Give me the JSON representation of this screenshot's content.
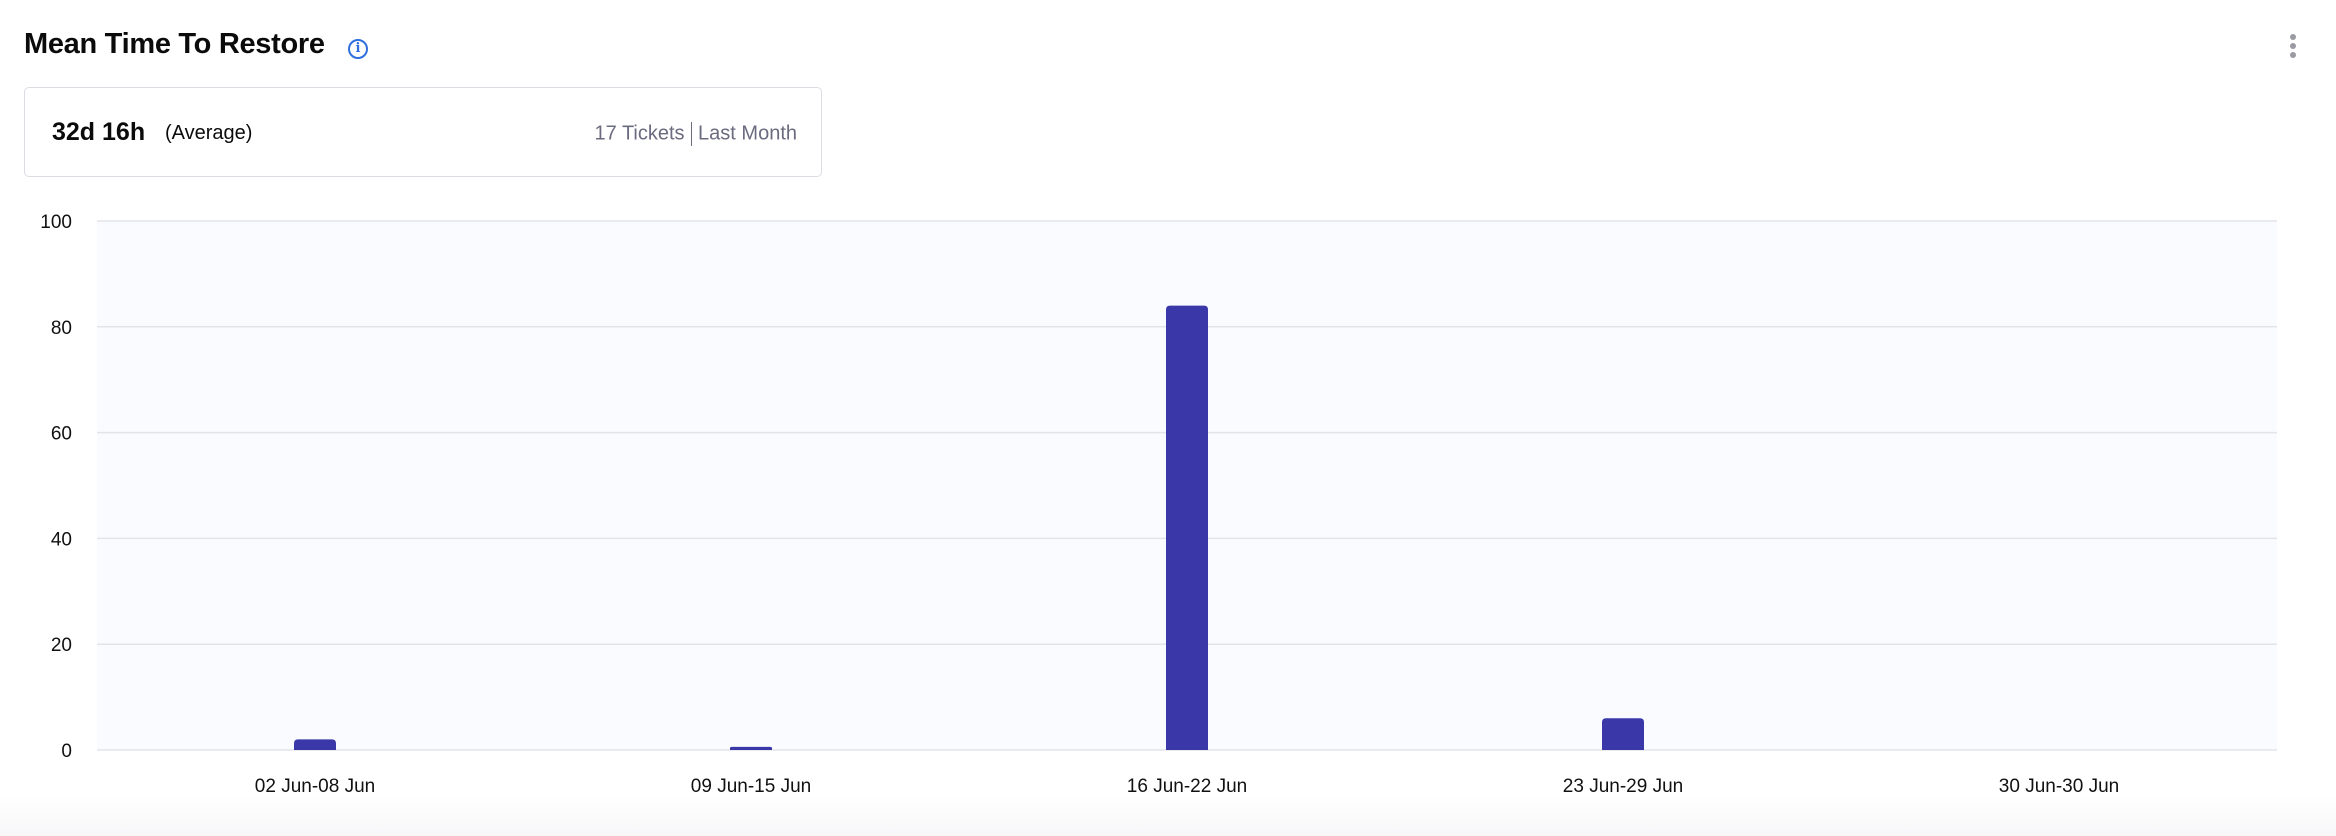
{
  "header": {
    "title": "Mean Time To Restore",
    "info_icon": "info-icon",
    "menu_icon": "kebab-menu-icon"
  },
  "summary": {
    "value": "32d 16h",
    "label": "(Average)",
    "tickets": "17 Tickets",
    "period": "Last Month"
  },
  "chart_data": {
    "type": "bar",
    "categories": [
      "02 Jun-08 Jun",
      "09 Jun-15 Jun",
      "16 Jun-22 Jun",
      "23 Jun-29 Jun",
      "30 Jun-30 Jun"
    ],
    "values": [
      2,
      0.6,
      84,
      6,
      0
    ],
    "ylim": [
      0,
      100
    ],
    "yticks": [
      "0",
      "20",
      "40",
      "60",
      "80",
      "100"
    ],
    "grid": true,
    "bar_color": "#3a38a8",
    "plot_background": "#fafbfe"
  }
}
